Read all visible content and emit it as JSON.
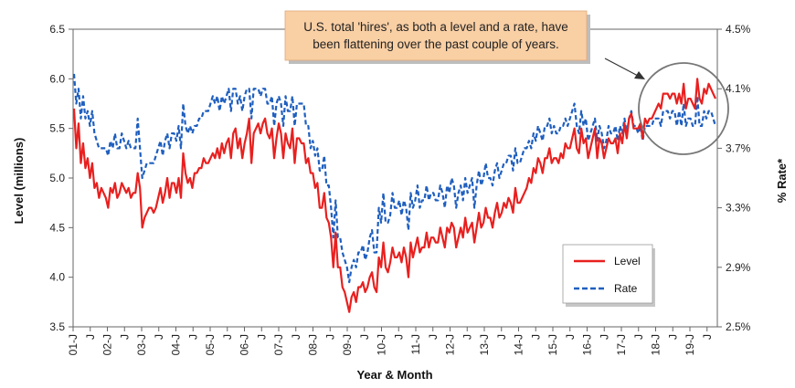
{
  "chart_data": {
    "type": "line",
    "xlabel": "Year & Month",
    "ylabel": "Level (millions)",
    "y2label": "% Rate*",
    "ylim": [
      3.5,
      6.5
    ],
    "yticks": [
      "3.5",
      "4.0",
      "4.5",
      "5.0",
      "5.5",
      "6.0",
      "6.5"
    ],
    "y2lim": [
      2.5,
      4.5
    ],
    "y2ticks": [
      "2.5%",
      "2.9%",
      "3.3%",
      "3.7%",
      "4.1%",
      "4.5%"
    ],
    "grid": false,
    "legend_position": "bottom-right",
    "x_tick_labels": [
      "01-J",
      "J",
      "02-J",
      "J",
      "03-J",
      "J",
      "04-J",
      "J",
      "05-J",
      "J",
      "06-J",
      "J",
      "07-J",
      "J",
      "08-J",
      "J",
      "09-J",
      "J",
      "10-J",
      "J",
      "11-J",
      "J",
      "12-J",
      "J",
      "13-J",
      "J",
      "14-J",
      "J",
      "15-J",
      "J",
      "16-J",
      "J",
      "17-J",
      "J",
      "18-J",
      "J",
      "19-J",
      "J"
    ],
    "annotation": {
      "line1": "U.S. total 'hires', as both a level and a rate, have",
      "line2": "been flattening over the past couple of years."
    },
    "series": [
      {
        "name": "Level",
        "axis": "left",
        "color": "#e8201f",
        "values": [
          5.7,
          5.3,
          5.55,
          5.15,
          5.35,
          5.1,
          5.2,
          5.0,
          5.15,
          4.9,
          4.95,
          4.8,
          4.9,
          4.85,
          4.8,
          4.7,
          4.9,
          4.85,
          4.95,
          4.8,
          4.85,
          4.95,
          4.9,
          4.85,
          4.9,
          4.8,
          4.85,
          4.85,
          5.05,
          4.9,
          4.5,
          4.6,
          4.65,
          4.7,
          4.7,
          4.65,
          4.7,
          4.8,
          4.9,
          4.75,
          4.85,
          5.0,
          4.8,
          4.95,
          4.95,
          4.85,
          5.0,
          4.8,
          5.25,
          5.05,
          4.95,
          5.0,
          4.9,
          5.05,
          5.05,
          5.1,
          5.1,
          5.2,
          5.15,
          5.15,
          5.2,
          5.25,
          5.2,
          5.3,
          5.2,
          5.35,
          5.25,
          5.35,
          5.4,
          5.2,
          5.45,
          5.5,
          5.3,
          5.4,
          5.2,
          5.35,
          5.45,
          5.6,
          5.15,
          5.45,
          5.5,
          5.55,
          5.45,
          5.55,
          5.6,
          5.45,
          5.4,
          5.5,
          5.2,
          5.4,
          5.55,
          5.45,
          5.2,
          5.45,
          5.35,
          5.3,
          5.5,
          5.15,
          5.4,
          5.4,
          5.35,
          5.35,
          5.15,
          5.2,
          5.05,
          5.05,
          4.9,
          4.95,
          4.7,
          4.7,
          4.85,
          4.6,
          4.55,
          4.4,
          4.1,
          4.45,
          4.1,
          4.1,
          3.9,
          3.85,
          3.75,
          3.65,
          3.8,
          3.85,
          3.75,
          3.9,
          3.9,
          3.95,
          3.85,
          3.9,
          4.0,
          4.05,
          3.9,
          3.85,
          4.2,
          4.1,
          4.35,
          4.1,
          4.05,
          4.15,
          4.3,
          4.2,
          4.2,
          4.25,
          4.15,
          4.3,
          4.2,
          4.0,
          4.35,
          4.2,
          4.3,
          4.4,
          4.25,
          4.3,
          4.3,
          4.45,
          4.3,
          4.4,
          4.4,
          4.35,
          4.35,
          4.5,
          4.4,
          4.3,
          4.5,
          4.45,
          4.55,
          4.5,
          4.3,
          4.4,
          4.5,
          4.4,
          4.6,
          4.45,
          4.5,
          4.55,
          4.35,
          4.5,
          4.65,
          4.5,
          4.55,
          4.7,
          4.6,
          4.6,
          4.5,
          4.65,
          4.75,
          4.6,
          4.65,
          4.75,
          4.7,
          4.8,
          4.75,
          4.65,
          4.9,
          4.75,
          4.75,
          4.8,
          4.85,
          4.9,
          5.0,
          4.95,
          5.1,
          5.05,
          5.2,
          5.15,
          5.05,
          5.2,
          5.2,
          5.3,
          5.15,
          5.2,
          5.2,
          5.15,
          5.25,
          5.2,
          5.35,
          5.3,
          5.3,
          5.4,
          5.5,
          5.3,
          5.25,
          5.5,
          5.35,
          5.4,
          5.2,
          5.3,
          5.4,
          5.5,
          5.2,
          5.4,
          5.35,
          5.2,
          5.3,
          5.4,
          5.35,
          5.35,
          5.4,
          5.25,
          5.45,
          5.35,
          5.55,
          5.4,
          5.6,
          5.65,
          5.5,
          5.5,
          5.5,
          5.55,
          5.4,
          5.6,
          5.55,
          5.6,
          5.6,
          5.65,
          5.7,
          5.75,
          5.7,
          5.85,
          5.85,
          5.85,
          5.8,
          5.85,
          5.85,
          5.75,
          5.85,
          5.75,
          5.95,
          5.7,
          5.8,
          5.8,
          5.75,
          5.7,
          6.0,
          5.8,
          5.75,
          5.9,
          5.85,
          5.95,
          5.9,
          5.85,
          5.8
        ]
      },
      {
        "name": "Rate",
        "axis": "right",
        "color": "#1f5fbf",
        "values": [
          4.2,
          4.0,
          4.1,
          3.9,
          4.05,
          3.9,
          3.95,
          3.85,
          3.95,
          3.8,
          3.75,
          3.7,
          3.7,
          3.7,
          3.7,
          3.65,
          3.75,
          3.7,
          3.8,
          3.7,
          3.7,
          3.8,
          3.75,
          3.7,
          3.75,
          3.7,
          3.7,
          3.7,
          3.9,
          3.7,
          3.5,
          3.55,
          3.6,
          3.6,
          3.6,
          3.6,
          3.65,
          3.7,
          3.75,
          3.65,
          3.75,
          3.8,
          3.7,
          3.8,
          3.8,
          3.75,
          3.85,
          3.7,
          4.0,
          3.85,
          3.8,
          3.85,
          3.8,
          3.85,
          3.85,
          3.9,
          3.9,
          3.95,
          3.95,
          3.95,
          4.0,
          4.05,
          4.0,
          4.05,
          3.95,
          4.05,
          4.0,
          4.05,
          4.1,
          3.95,
          4.1,
          4.1,
          4.0,
          4.05,
          3.95,
          4.05,
          4.1,
          4.1,
          3.9,
          4.1,
          4.1,
          4.1,
          4.05,
          4.1,
          4.1,
          4.0,
          4.0,
          4.05,
          3.85,
          4.0,
          4.05,
          4.0,
          3.85,
          4.05,
          3.95,
          3.95,
          4.05,
          3.85,
          4.0,
          4.0,
          4.0,
          4.0,
          3.85,
          3.85,
          3.7,
          3.75,
          3.65,
          3.7,
          3.55,
          3.55,
          3.65,
          3.45,
          3.45,
          3.3,
          3.1,
          3.35,
          3.1,
          3.1,
          3.0,
          2.95,
          2.9,
          2.8,
          2.9,
          2.95,
          2.9,
          3.0,
          3.0,
          3.05,
          2.95,
          3.0,
          3.1,
          3.15,
          3.0,
          3.0,
          3.3,
          3.2,
          3.4,
          3.2,
          3.2,
          3.25,
          3.4,
          3.3,
          3.3,
          3.35,
          3.25,
          3.35,
          3.3,
          3.15,
          3.4,
          3.3,
          3.35,
          3.45,
          3.3,
          3.35,
          3.35,
          3.45,
          3.35,
          3.4,
          3.4,
          3.35,
          3.35,
          3.45,
          3.4,
          3.3,
          3.45,
          3.4,
          3.5,
          3.45,
          3.3,
          3.4,
          3.45,
          3.35,
          3.5,
          3.4,
          3.45,
          3.5,
          3.3,
          3.45,
          3.55,
          3.45,
          3.5,
          3.6,
          3.5,
          3.5,
          3.45,
          3.55,
          3.6,
          3.5,
          3.55,
          3.6,
          3.6,
          3.65,
          3.65,
          3.55,
          3.7,
          3.6,
          3.6,
          3.65,
          3.7,
          3.7,
          3.75,
          3.7,
          3.8,
          3.75,
          3.85,
          3.8,
          3.75,
          3.85,
          3.85,
          3.9,
          3.8,
          3.85,
          3.8,
          3.8,
          3.85,
          3.85,
          3.9,
          3.85,
          3.9,
          3.95,
          4.0,
          3.85,
          3.8,
          3.95,
          3.85,
          3.9,
          3.75,
          3.8,
          3.85,
          3.9,
          3.75,
          3.85,
          3.8,
          3.7,
          3.75,
          3.85,
          3.8,
          3.8,
          3.85,
          3.75,
          3.85,
          3.8,
          3.9,
          3.8,
          3.9,
          3.95,
          3.85,
          3.85,
          3.8,
          3.85,
          3.75,
          3.85,
          3.85,
          3.85,
          3.85,
          3.9,
          3.9,
          3.9,
          3.85,
          3.95,
          3.95,
          3.95,
          3.9,
          3.95,
          3.95,
          3.85,
          3.95,
          3.85,
          4.0,
          3.85,
          3.9,
          3.9,
          3.85,
          3.85,
          4.05,
          3.85,
          3.85,
          3.95,
          3.9,
          3.95,
          3.95,
          3.9,
          3.85
        ]
      }
    ]
  }
}
